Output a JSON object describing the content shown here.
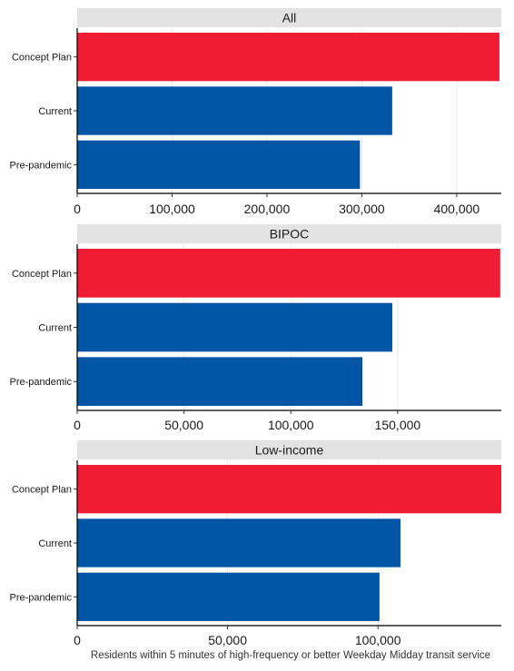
{
  "chart_data": {
    "type": "bar",
    "orientation": "horizontal",
    "xlabel": "Residents within 5 minutes of high-frequency or better Weekday Midday transit service",
    "grid": true,
    "facets": [
      {
        "title": "All",
        "categories": [
          "Concept Plan",
          "Current",
          "Pre-pandemic"
        ],
        "values": [
          445000,
          332000,
          298000
        ],
        "xlim": [
          0,
          447000
        ],
        "ticks": [
          0,
          100000,
          200000,
          300000,
          400000
        ],
        "tick_labels": [
          "0",
          "100,000",
          "200,000",
          "300,000",
          "400,000"
        ]
      },
      {
        "title": "BIPOC",
        "categories": [
          "Concept Plan",
          "Current",
          "Pre-pandemic"
        ],
        "values": [
          198000,
          147500,
          133500
        ],
        "xlim": [
          0,
          198500
        ],
        "ticks": [
          0,
          50000,
          100000,
          150000
        ],
        "tick_labels": [
          "0",
          "50,000",
          "100,000",
          "150,000"
        ]
      },
      {
        "title": "Low-income",
        "categories": [
          "Concept Plan",
          "Current",
          "Pre-pandemic"
        ],
        "values": [
          141000,
          107500,
          100500
        ],
        "xlim": [
          0,
          141000
        ],
        "ticks": [
          0,
          50000,
          100000
        ],
        "tick_labels": [
          "0",
          "50,000",
          "100,000"
        ]
      }
    ],
    "colors": {
      "Concept Plan": "#ef1c34",
      "Current": "#0055a4",
      "Pre-pandemic": "#0055a4"
    }
  }
}
